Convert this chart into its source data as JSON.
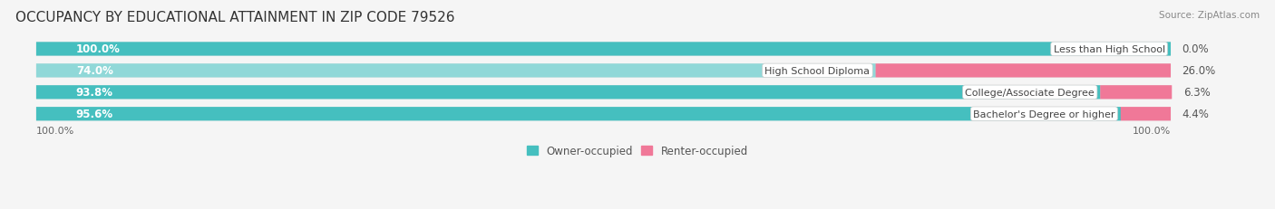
{
  "title": "OCCUPANCY BY EDUCATIONAL ATTAINMENT IN ZIP CODE 79526",
  "source": "Source: ZipAtlas.com",
  "categories": [
    "Less than High School",
    "High School Diploma",
    "College/Associate Degree",
    "Bachelor's Degree or higher"
  ],
  "owner_pct": [
    100.0,
    74.0,
    93.8,
    95.6
  ],
  "renter_pct": [
    0.0,
    26.0,
    6.3,
    4.4
  ],
  "owner_color": "#45bfbf",
  "renter_color": "#f07898",
  "owner_color_light": "#90d8d8",
  "bar_bg": "#e0e0e0",
  "owner_label": "Owner-occupied",
  "renter_label": "Renter-occupied",
  "background_color": "#f5f5f5",
  "title_fontsize": 11,
  "label_fontsize": 8.5,
  "tick_fontsize": 8,
  "source_fontsize": 7.5,
  "x_left_label": "100.0%",
  "x_right_label": "100.0%"
}
